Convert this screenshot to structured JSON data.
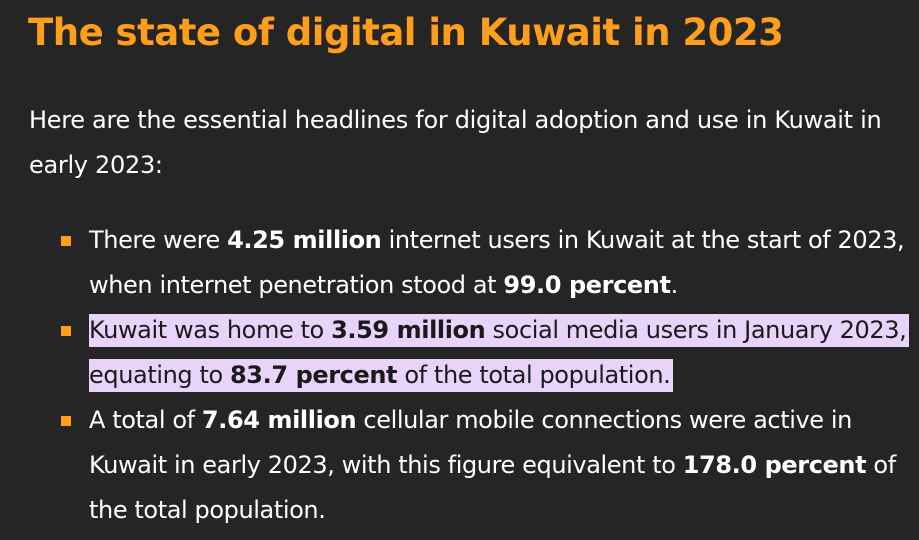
{
  "title": "The state of digital in Kuwait in 2023",
  "intro": "Here are the essential headlines for digital adoption and use in Kuwait in early 2023:",
  "highlight_color": "#e8d3fb",
  "accent_color": "#ff9e1b",
  "bullets": [
    {
      "t1": "There were ",
      "b1": "4.25 million",
      "t2": " internet users in Kuwait at the start of 2023, when internet penetration stood at ",
      "b2": "99.0 percent",
      "t3": "."
    },
    {
      "t1": "Kuwait was home to ",
      "b1": "3.59 million",
      "t2": " social media users in January 2023, equating to ",
      "b2": "83.7 percent",
      "t3": " of the total population."
    },
    {
      "t1": "A total of ",
      "b1": "7.64 million",
      "t2": " cellular mobile connections were active in Kuwait in early 2023, with this figure equivalent to ",
      "b2": "178.0 percent",
      "t3": " of the total population."
    }
  ]
}
